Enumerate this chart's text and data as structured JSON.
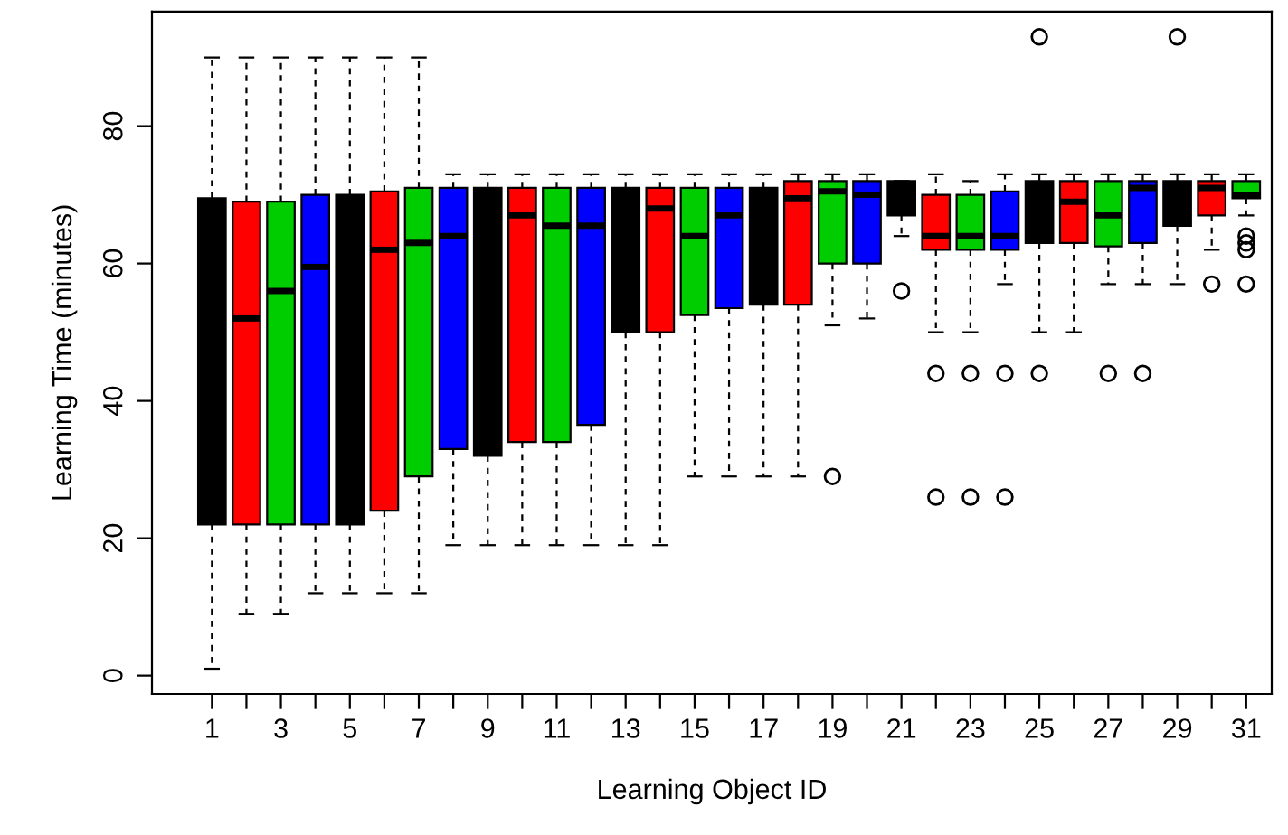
{
  "chart_data": {
    "type": "box",
    "xlabel": "Learning Object ID",
    "ylabel": "Learning Time (minutes)",
    "categories": [
      "1",
      null,
      "3",
      null,
      "5",
      null,
      "7",
      null,
      "9",
      null,
      "11",
      null,
      "13",
      null,
      "15",
      null,
      "17",
      null,
      "19",
      null,
      "21",
      null,
      "23",
      null,
      "25",
      null,
      "27",
      null,
      "29",
      null,
      "31"
    ],
    "colors": [
      "#000000",
      "#ff0000",
      "#00cd00",
      "#0000ff",
      "#000000",
      "#ff0000",
      "#00cd00",
      "#0000ff",
      "#000000",
      "#ff0000",
      "#00cd00",
      "#0000ff",
      "#000000",
      "#ff0000",
      "#00cd00",
      "#0000ff",
      "#000000",
      "#ff0000",
      "#00cd00",
      "#0000ff",
      "#000000",
      "#ff0000",
      "#00cd00",
      "#0000ff",
      "#000000",
      "#ff0000",
      "#00cd00",
      "#0000ff",
      "#000000",
      "#ff0000",
      "#00cd00"
    ],
    "boxes": [
      {
        "low": 1,
        "q1": 22,
        "median": 50,
        "q3": 69.5,
        "high": 90
      },
      {
        "low": 9,
        "q1": 22,
        "median": 52,
        "q3": 69,
        "high": 90
      },
      {
        "low": 9,
        "q1": 22,
        "median": 56,
        "q3": 69,
        "high": 90
      },
      {
        "low": 12,
        "q1": 22,
        "median": 59.5,
        "q3": 70,
        "high": 90
      },
      {
        "low": 12,
        "q1": 22,
        "median": 60,
        "q3": 70,
        "high": 90
      },
      {
        "low": 12,
        "q1": 24,
        "median": 62,
        "q3": 70.5,
        "high": 90
      },
      {
        "low": 12,
        "q1": 29,
        "median": 63,
        "q3": 71,
        "high": 90
      },
      {
        "low": 19,
        "q1": 33,
        "median": 64,
        "q3": 71,
        "high": 73
      },
      {
        "low": 19,
        "q1": 32,
        "median": 64,
        "q3": 71,
        "high": 73
      },
      {
        "low": 19,
        "q1": 34,
        "median": 67,
        "q3": 71,
        "high": 73
      },
      {
        "low": 19,
        "q1": 34,
        "median": 65.5,
        "q3": 71,
        "high": 73
      },
      {
        "low": 19,
        "q1": 36.5,
        "median": 65.5,
        "q3": 71,
        "high": 73
      },
      {
        "low": 19,
        "q1": 50,
        "median": 65,
        "q3": 71,
        "high": 73
      },
      {
        "low": 19,
        "q1": 50,
        "median": 68,
        "q3": 71,
        "high": 73
      },
      {
        "low": 29,
        "q1": 52.5,
        "median": 64,
        "q3": 71,
        "high": 73
      },
      {
        "low": 29,
        "q1": 53.5,
        "median": 67,
        "q3": 71,
        "high": 73
      },
      {
        "low": 29,
        "q1": 54,
        "median": 67,
        "q3": 71,
        "high": 73
      },
      {
        "low": 29,
        "q1": 54,
        "median": 69.5,
        "q3": 72,
        "high": 73
      },
      {
        "low": 51,
        "q1": 60,
        "median": 70.5,
        "q3": 72,
        "high": 73,
        "outliers": [
          29
        ]
      },
      {
        "low": 52,
        "q1": 60,
        "median": 70,
        "q3": 72,
        "high": 73
      },
      {
        "low": 64,
        "q1": 67,
        "median": 70,
        "q3": 72,
        "high": 72,
        "outliers": [
          56
        ]
      },
      {
        "low": 50,
        "q1": 62,
        "median": 64,
        "q3": 70,
        "high": 73,
        "outliers": [
          44,
          26
        ]
      },
      {
        "low": 50,
        "q1": 62,
        "median": 64,
        "q3": 70,
        "high": 72,
        "outliers": [
          44,
          26
        ]
      },
      {
        "low": 57,
        "q1": 62,
        "median": 64,
        "q3": 70.5,
        "high": 73,
        "outliers": [
          44,
          26
        ]
      },
      {
        "low": 50,
        "q1": 63,
        "median": 68,
        "q3": 72,
        "high": 73,
        "outliers": [
          44,
          93
        ]
      },
      {
        "low": 50,
        "q1": 63,
        "median": 69,
        "q3": 72,
        "high": 73
      },
      {
        "low": 57,
        "q1": 62.5,
        "median": 67,
        "q3": 72,
        "high": 73,
        "outliers": [
          44
        ]
      },
      {
        "low": 57,
        "q1": 63,
        "median": 71,
        "q3": 72,
        "high": 73,
        "outliers": [
          44
        ]
      },
      {
        "low": 57,
        "q1": 65.5,
        "median": 70,
        "q3": 72,
        "high": 73,
        "outliers": [
          93
        ]
      },
      {
        "low": 62,
        "q1": 67,
        "median": 71,
        "q3": 72,
        "high": 73,
        "outliers": [
          57
        ]
      },
      {
        "low": 67,
        "q1": 69.5,
        "median": 70,
        "q3": 72,
        "high": 73,
        "outliers": [
          64,
          63,
          62,
          57
        ]
      }
    ],
    "ylim": [
      -2.68,
      96.68
    ],
    "yticks": [
      0,
      20,
      40,
      60,
      80
    ]
  }
}
